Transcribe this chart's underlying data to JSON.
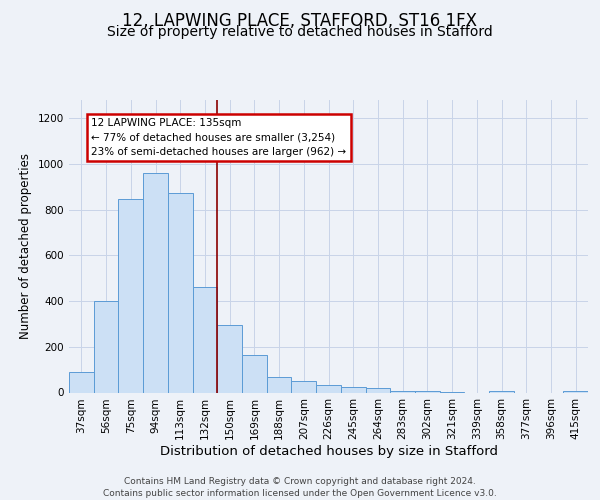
{
  "title1": "12, LAPWING PLACE, STAFFORD, ST16 1FX",
  "title2": "Size of property relative to detached houses in Stafford",
  "xlabel": "Distribution of detached houses by size in Stafford",
  "ylabel": "Number of detached properties",
  "categories": [
    "37sqm",
    "56sqm",
    "75sqm",
    "94sqm",
    "113sqm",
    "132sqm",
    "150sqm",
    "169sqm",
    "188sqm",
    "207sqm",
    "226sqm",
    "245sqm",
    "264sqm",
    "283sqm",
    "302sqm",
    "321sqm",
    "339sqm",
    "358sqm",
    "377sqm",
    "396sqm",
    "415sqm"
  ],
  "values": [
    90,
    400,
    845,
    960,
    875,
    460,
    295,
    163,
    70,
    50,
    35,
    25,
    18,
    8,
    5,
    4,
    0,
    8,
    0,
    0,
    8
  ],
  "bar_color": "#cce0f5",
  "bar_edge_color": "#5b9bd5",
  "vline_x": 5.5,
  "vline_color": "#8b0000",
  "annotation_text": "12 LAPWING PLACE: 135sqm\n← 77% of detached houses are smaller (3,254)\n23% of semi-detached houses are larger (962) →",
  "annotation_box_color": "white",
  "annotation_box_edge": "#cc0000",
  "footer": "Contains HM Land Registry data © Crown copyright and database right 2024.\nContains public sector information licensed under the Open Government Licence v3.0.",
  "ylim": [
    0,
    1280
  ],
  "bg_color": "#eef2f8",
  "grid_color": "#c8d4e8",
  "title1_fontsize": 12,
  "title2_fontsize": 10,
  "xlabel_fontsize": 9.5,
  "ylabel_fontsize": 8.5,
  "tick_fontsize": 7.5,
  "footer_fontsize": 6.5,
  "ann_fontsize": 7.5
}
